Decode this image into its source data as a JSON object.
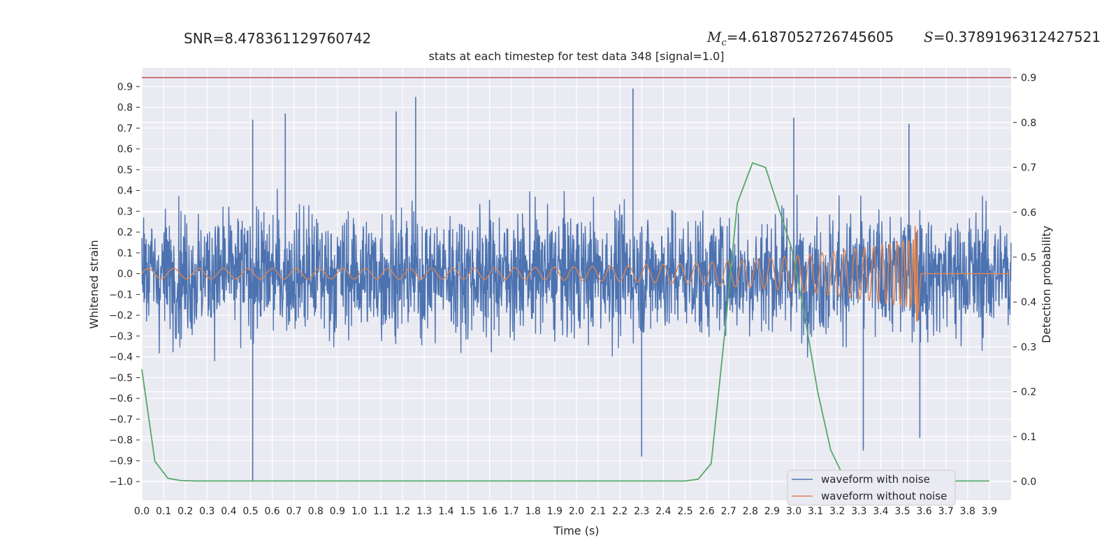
{
  "header": {
    "snr_text": "SNR=8.478361129760742",
    "mc_symbol": "M",
    "mc_subscript": "c",
    "mc_value": "=4.6187052726745605",
    "s_symbol": "S",
    "s_value": "=0.3789196312427521"
  },
  "chart_data": {
    "type": "line",
    "title": "stats at each timestep for test data 348 [signal=1.0]",
    "xlabel": "Time (s)",
    "ylabel": "Whitened strain",
    "y2label": "Detection probability",
    "xlim": [
      0.0,
      4.0
    ],
    "ylim": [
      -1.09,
      0.99
    ],
    "y2lim": [
      -0.042,
      0.922
    ],
    "grid": true,
    "background": "#eaeaf2",
    "xticks": [
      "0.0",
      "0.1",
      "0.2",
      "0.3",
      "0.4",
      "0.5",
      "0.6",
      "0.7",
      "0.8",
      "0.9",
      "1.0",
      "1.1",
      "1.2",
      "1.3",
      "1.4",
      "1.5",
      "1.6",
      "1.7",
      "1.8",
      "1.9",
      "2.0",
      "2.1",
      "2.2",
      "2.3",
      "2.4",
      "2.5",
      "2.6",
      "2.7",
      "2.8",
      "2.9",
      "3.0",
      "3.1",
      "3.2",
      "3.3",
      "3.4",
      "3.5",
      "3.6",
      "3.7",
      "3.8",
      "3.9"
    ],
    "yticks": [
      "0.9",
      "0.8",
      "0.7",
      "0.6",
      "0.5",
      "0.4",
      "0.3",
      "0.2",
      "0.1",
      "0.0",
      "−0.1",
      "−0.2",
      "−0.3",
      "−0.4",
      "−0.5",
      "−0.6",
      "−0.7",
      "−0.8",
      "−0.9",
      "−1.0"
    ],
    "y2ticks": [
      "0.9",
      "0.8",
      "0.7",
      "0.6",
      "0.5",
      "0.4",
      "0.3",
      "0.2",
      "0.1",
      "0.0"
    ],
    "threshold": {
      "value": 0.9,
      "axis": "right",
      "color": "#c44e52"
    },
    "legend": {
      "placement": "lower-right"
    },
    "series": [
      {
        "name": "waveform with noise",
        "color": "#4c72b0",
        "axis": "left",
        "kind": "noise",
        "x_range": [
          0.0,
          4.0
        ],
        "envelope_min": -1.0,
        "envelope_max": 0.89,
        "spikes": [
          [
            0.51,
            -1.0
          ],
          [
            0.51,
            0.74
          ],
          [
            0.66,
            0.77
          ],
          [
            1.17,
            0.78
          ],
          [
            1.26,
            0.85
          ],
          [
            2.26,
            0.89
          ],
          [
            2.3,
            -0.88
          ],
          [
            3.0,
            0.75
          ],
          [
            3.32,
            -0.85
          ],
          [
            3.58,
            -0.79
          ],
          [
            3.53,
            0.72
          ]
        ]
      },
      {
        "name": "waveform without noise",
        "color": "#dd8452",
        "axis": "left",
        "kind": "chirp",
        "x_range": [
          0.0,
          3.57
        ],
        "amplitude_start": 0.025,
        "amplitude_end": 0.17,
        "merger_min": -0.23,
        "merger_time": 3.57
      },
      {
        "name": "",
        "color": "#55a868",
        "axis": "right",
        "kind": "line",
        "x": [
          0.0,
          0.06,
          0.12,
          0.18,
          0.25,
          0.5,
          1.0,
          1.5,
          2.0,
          2.5,
          2.56,
          2.62,
          2.68,
          2.74,
          2.81,
          2.87,
          2.93,
          2.99,
          3.05,
          3.11,
          3.17,
          3.23,
          3.3,
          3.9
        ],
        "y": [
          0.25,
          0.045,
          0.007,
          0.002,
          0.001,
          0.001,
          0.001,
          0.001,
          0.001,
          0.001,
          0.005,
          0.04,
          0.32,
          0.62,
          0.71,
          0.7,
          0.61,
          0.52,
          0.37,
          0.2,
          0.07,
          0.01,
          0.001,
          0.001
        ]
      }
    ]
  }
}
